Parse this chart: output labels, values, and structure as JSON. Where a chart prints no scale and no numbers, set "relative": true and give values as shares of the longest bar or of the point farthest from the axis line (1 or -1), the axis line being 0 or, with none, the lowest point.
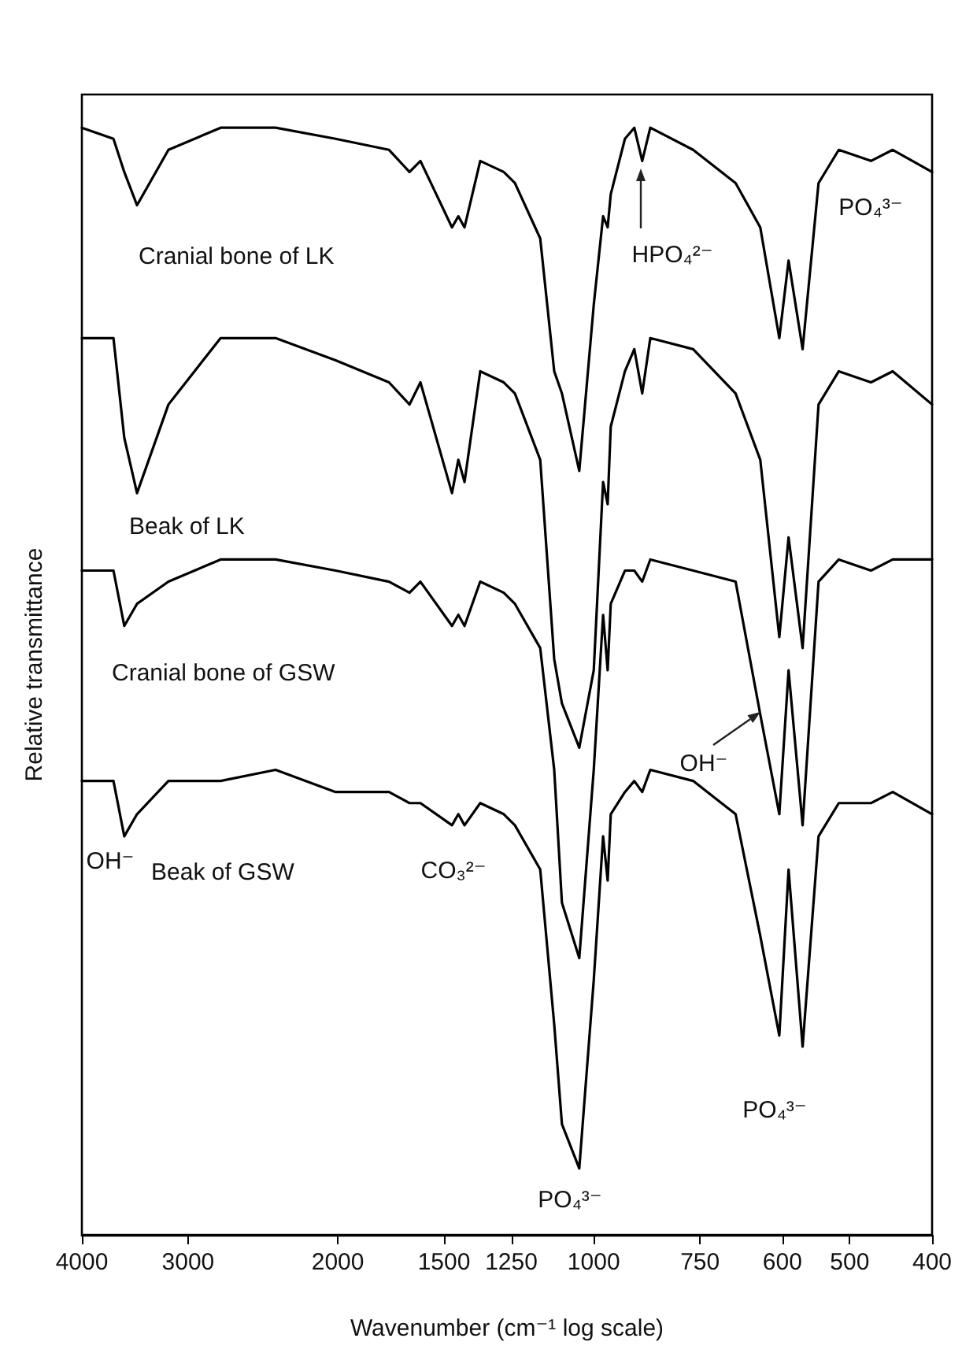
{
  "chart_data": {
    "type": "line",
    "relative": true,
    "xlabel": "Wavenumber (cm⁻¹ log scale)",
    "ylabel": "Relative transmittance",
    "log": "x",
    "marker": "none",
    "line_style": "solid",
    "xlim": [
      4000,
      400
    ],
    "xticks": [
      4000,
      3000,
      2000,
      1500,
      1250,
      1000,
      750,
      600,
      500,
      400
    ],
    "x": [
      4000,
      3672,
      3566,
      3445,
      3164,
      2747,
      2367,
      2012,
      1741,
      1647,
      1599,
      1468,
      1443,
      1419,
      1360,
      1276,
      1238,
      1156,
      1113,
      1090,
      1040,
      1000,
      975,
      963,
      955,
      919,
      896,
      877,
      858,
      764,
      681,
      637,
      605,
      590,
      568,
      544,
      515,
      472,
      445,
      400
    ],
    "series": [
      {
        "name": "Cranial bone of LK",
        "color": "#000000",
        "values": [
          1.0,
          0.99,
          0.96,
          0.93,
          0.98,
          1.0,
          1.0,
          0.99,
          0.98,
          0.96,
          0.97,
          0.91,
          0.92,
          0.91,
          0.97,
          0.96,
          0.95,
          0.9,
          0.78,
          0.76,
          0.69,
          0.84,
          0.92,
          0.91,
          0.94,
          0.99,
          1.0,
          0.97,
          1.0,
          0.98,
          0.95,
          0.91,
          0.81,
          0.88,
          0.8,
          0.95,
          0.98,
          0.97,
          0.98,
          0.96
        ]
      },
      {
        "name": "Beak of LK",
        "color": "#000000",
        "values": [
          0.81,
          0.81,
          0.72,
          0.67,
          0.75,
          0.81,
          0.81,
          0.79,
          0.77,
          0.75,
          0.77,
          0.67,
          0.7,
          0.68,
          0.78,
          0.77,
          0.76,
          0.7,
          0.52,
          0.48,
          0.44,
          0.51,
          0.68,
          0.66,
          0.73,
          0.78,
          0.8,
          0.76,
          0.81,
          0.8,
          0.76,
          0.7,
          0.54,
          0.63,
          0.53,
          0.75,
          0.78,
          0.77,
          0.78,
          0.75
        ]
      },
      {
        "name": "Cranial bone of GSW",
        "color": "#000000",
        "values": [
          0.6,
          0.6,
          0.55,
          0.57,
          0.59,
          0.61,
          0.61,
          0.6,
          0.59,
          0.58,
          0.59,
          0.55,
          0.56,
          0.55,
          0.59,
          0.58,
          0.57,
          0.53,
          0.42,
          0.3,
          0.25,
          0.42,
          0.56,
          0.51,
          0.57,
          0.6,
          0.6,
          0.59,
          0.61,
          0.6,
          0.59,
          0.47,
          0.38,
          0.51,
          0.37,
          0.59,
          0.61,
          0.6,
          0.61,
          0.61
        ]
      },
      {
        "name": "Beak of GSW",
        "color": "#000000",
        "values": [
          0.41,
          0.41,
          0.36,
          0.38,
          0.41,
          0.41,
          0.42,
          0.4,
          0.4,
          0.39,
          0.39,
          0.37,
          0.38,
          0.37,
          0.39,
          0.38,
          0.37,
          0.33,
          0.19,
          0.1,
          0.06,
          0.23,
          0.36,
          0.32,
          0.38,
          0.4,
          0.41,
          0.4,
          0.42,
          0.41,
          0.38,
          0.27,
          0.18,
          0.33,
          0.17,
          0.36,
          0.39,
          0.39,
          0.4,
          0.38
        ]
      }
    ],
    "annotations": [
      "HPO₄²⁻",
      "PO₄³⁻",
      "OH⁻",
      "OH⁻",
      "CO₃²⁻",
      "PO₄³⁻",
      "PO₄³⁻"
    ]
  }
}
